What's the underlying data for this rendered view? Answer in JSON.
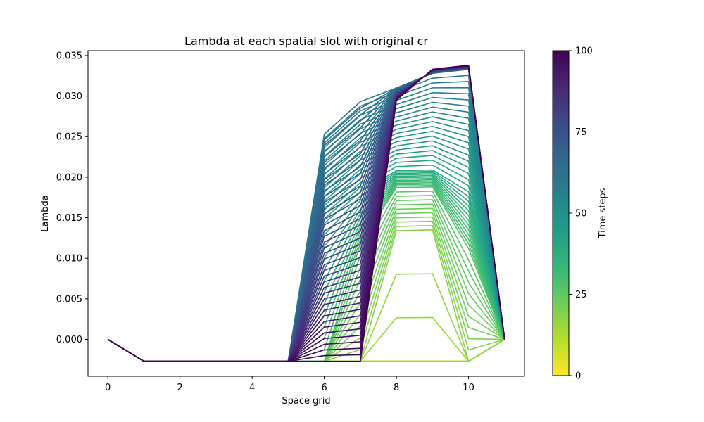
{
  "chart_data": {
    "type": "line",
    "title": "Lambda at each spatial slot with original cr",
    "xlabel": "Space grid",
    "ylabel": "Lambda",
    "xlim": [
      -0.55,
      11.55
    ],
    "ylim": [
      -0.00455,
      0.0356
    ],
    "xticks": [
      0,
      2,
      4,
      6,
      8,
      10
    ],
    "yticks": [
      0.0,
      0.005,
      0.01,
      0.015,
      0.02,
      0.025,
      0.03,
      0.035
    ],
    "ytick_labels": [
      "0.000",
      "0.005",
      "0.010",
      "0.015",
      "0.020",
      "0.025",
      "0.030",
      "0.035"
    ],
    "x": [
      0,
      1,
      2,
      3,
      4,
      5,
      6,
      7,
      8,
      9,
      10,
      11
    ],
    "series_count": 101,
    "series_rule": "One line per time step t = 0..100; each series is a lambda profile over the 12 space-grid slots, colored by time step on the viridis scale.",
    "key_profiles": [
      {
        "t": 15,
        "values": [
          0.0,
          -0.0027,
          -0.0027,
          -0.0027,
          -0.0027,
          -0.0027,
          -0.0027,
          -0.0027,
          -0.0027,
          -0.0027,
          -0.0027,
          0.0
        ]
      },
      {
        "t": 18,
        "values": [
          0.0,
          -0.0027,
          -0.0027,
          -0.0027,
          -0.0027,
          -0.0027,
          -0.0027,
          -0.0027,
          0.0134,
          0.0135,
          -0.0027,
          0.0
        ]
      },
      {
        "t": 28,
        "values": [
          0.0,
          -0.0027,
          -0.0027,
          -0.0027,
          -0.0027,
          -0.0027,
          -0.0027,
          0.0118,
          0.0187,
          0.0188,
          0.0112,
          0.0
        ]
      },
      {
        "t": 40,
        "values": [
          0.0,
          -0.0027,
          -0.0027,
          -0.0027,
          -0.0027,
          -0.0027,
          0.0143,
          0.0182,
          0.0208,
          0.0209,
          0.0182,
          0.0
        ]
      },
      {
        "t": 60,
        "values": [
          0.0,
          -0.0027,
          -0.0027,
          -0.0027,
          -0.0027,
          -0.0027,
          0.0253,
          0.0293,
          0.031,
          0.0328,
          0.0333,
          0.0
        ]
      },
      {
        "t": 100,
        "values": [
          0.0,
          -0.0027,
          -0.0027,
          -0.0027,
          -0.0027,
          -0.0027,
          -0.0027,
          -0.0027,
          0.0295,
          0.0333,
          0.0338,
          0.0
        ]
      }
    ],
    "colorbar": {
      "label": "Time steps",
      "colormap": "viridis",
      "range": [
        0,
        100
      ],
      "ticks": [
        0,
        25,
        50,
        75,
        100
      ]
    },
    "grid": false,
    "legend": "none"
  },
  "colors": {
    "viridis_stops": [
      "#fde725",
      "#b5de2b",
      "#6ece58",
      "#35b779",
      "#1f9e89",
      "#26828e",
      "#31688e",
      "#3e4989",
      "#482878",
      "#440154"
    ],
    "axis": "#000000",
    "background": "#ffffff"
  }
}
